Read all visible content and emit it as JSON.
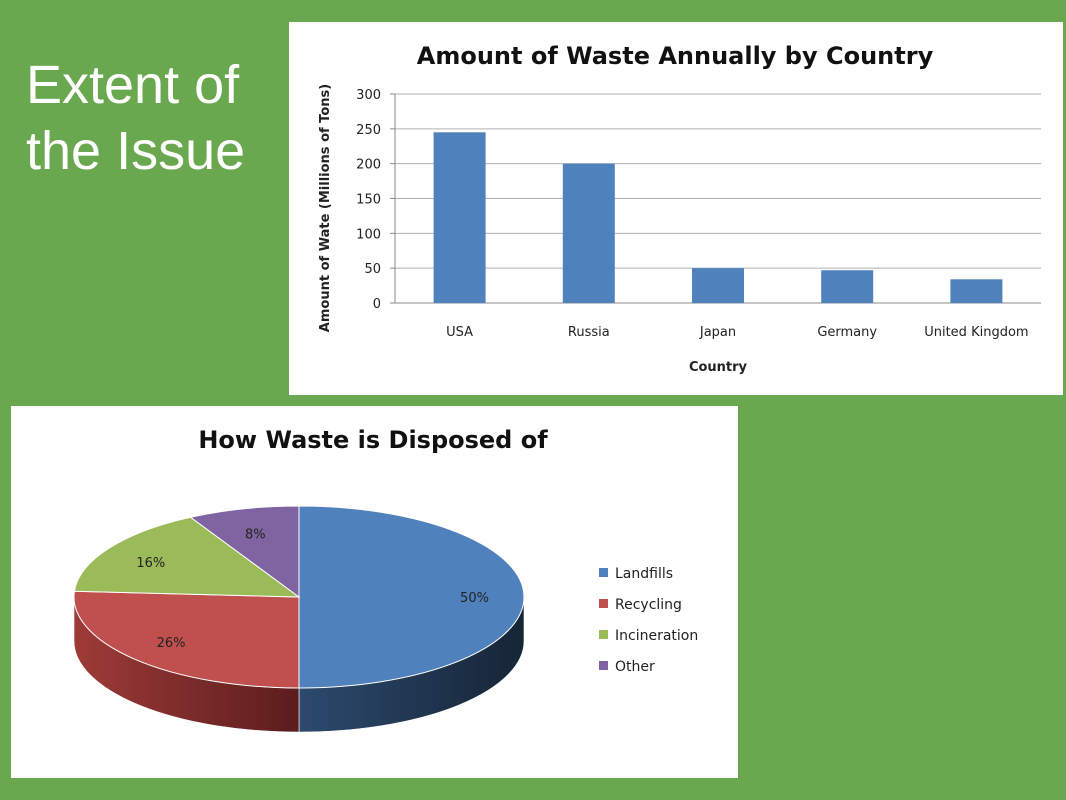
{
  "slide": {
    "title": "Extent of\nthe Issue"
  },
  "chart_data": [
    {
      "type": "bar",
      "title": "Amount of Waste Annually by Country",
      "xlabel": "Country",
      "ylabel": "Amount of Wate (Millions of Tons)",
      "categories": [
        "USA",
        "Russia",
        "Japan",
        "Germany",
        "United Kingdom"
      ],
      "values": [
        245,
        200,
        50,
        47,
        34
      ],
      "ylim": [
        0,
        300
      ],
      "yticks": [
        0,
        50,
        100,
        150,
        200,
        250,
        300
      ],
      "grid": true,
      "bar_color": "#4f81bd"
    },
    {
      "type": "pie",
      "title": "How Waste is Disposed of",
      "labels": [
        "Landfills",
        "Recycling",
        "Incineration",
        "Other"
      ],
      "values": [
        50,
        26,
        16,
        8
      ],
      "value_labels": [
        "50%",
        "26%",
        "16%",
        "8%"
      ],
      "colors": [
        "#4f81bd",
        "#c0504d",
        "#9bbb59",
        "#8064a2"
      ],
      "legend": "right"
    }
  ]
}
